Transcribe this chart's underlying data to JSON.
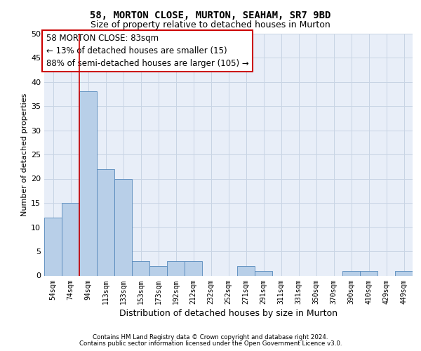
{
  "title1": "58, MORTON CLOSE, MURTON, SEAHAM, SR7 9BD",
  "title2": "Size of property relative to detached houses in Murton",
  "xlabel": "Distribution of detached houses by size in Murton",
  "ylabel": "Number of detached properties",
  "categories": [
    "54sqm",
    "74sqm",
    "94sqm",
    "113sqm",
    "133sqm",
    "153sqm",
    "173sqm",
    "192sqm",
    "212sqm",
    "232sqm",
    "252sqm",
    "271sqm",
    "291sqm",
    "311sqm",
    "331sqm",
    "350sqm",
    "370sqm",
    "390sqm",
    "410sqm",
    "429sqm",
    "449sqm"
  ],
  "values": [
    12,
    15,
    38,
    22,
    20,
    3,
    2,
    3,
    3,
    0,
    0,
    2,
    1,
    0,
    0,
    0,
    0,
    1,
    1,
    0,
    1
  ],
  "bar_color": "#b8cfe8",
  "bar_edge_color": "#5588bb",
  "red_line_x": 1.5,
  "annotation_line1": "58 MORTON CLOSE: 83sqm",
  "annotation_line2": "← 13% of detached houses are smaller (15)",
  "annotation_line3": "88% of semi-detached houses are larger (105) →",
  "annotation_box_facecolor": "#ffffff",
  "annotation_box_edgecolor": "#cc0000",
  "ylim_max": 50,
  "yticks": [
    0,
    5,
    10,
    15,
    20,
    25,
    30,
    35,
    40,
    45,
    50
  ],
  "grid_color": "#c8d4e4",
  "background_color": "#e8eef8",
  "footer1": "Contains HM Land Registry data © Crown copyright and database right 2024.",
  "footer2": "Contains public sector information licensed under the Open Government Licence v3.0."
}
